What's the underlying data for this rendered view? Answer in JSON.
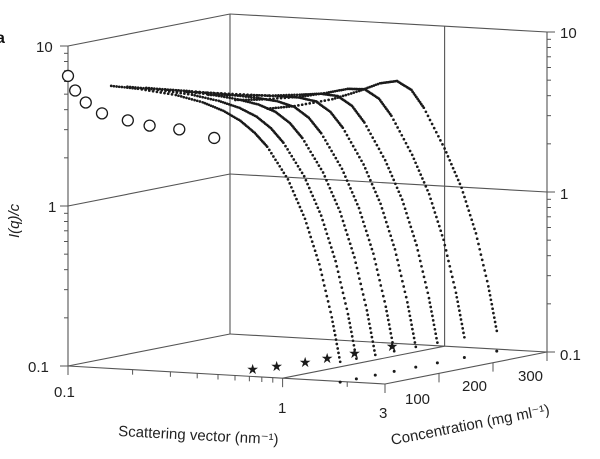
{
  "panel_label": "a",
  "chart_data": {
    "type": "scatter",
    "projection": "3d",
    "ylabel": "I(q)/c",
    "xlabel": "Scattering vector (nm⁻¹)",
    "zlabel": "Concentration (mg ml⁻¹)",
    "x_scale": "log",
    "y_scale": "log",
    "xlim": [
      0.1,
      3
    ],
    "ylim": [
      0.1,
      10
    ],
    "zlim": [
      0,
      300
    ],
    "x_ticks": [
      "0.1",
      "1",
      "3"
    ],
    "y_ticks_left": [
      "10",
      "1",
      "0.1"
    ],
    "y_ticks_right": [
      "10",
      "1",
      "0.1"
    ],
    "z_ticks": [
      "100",
      "200",
      "300"
    ],
    "grid": true,
    "q": [
      0.15,
      0.2,
      0.3,
      0.4,
      0.5,
      0.6,
      0.7,
      0.8,
      1.0,
      1.2,
      1.4,
      1.6,
      1.75
    ],
    "series": [
      {
        "concentration": 10,
        "marker": "dot",
        "values": [
          5.72,
          5.61,
          5.29,
          4.87,
          4.38,
          3.85,
          3.27,
          2.71,
          1.72,
          0.99,
          0.52,
          0.245,
          0.13
        ]
      },
      {
        "concentration": 40,
        "marker": "dot",
        "values": [
          5.4,
          5.32,
          5.07,
          4.74,
          4.36,
          3.9,
          3.34,
          2.74,
          1.72,
          0.99,
          0.52,
          0.245,
          0.13
        ]
      },
      {
        "concentration": 75,
        "marker": "dot",
        "values": [
          5.03,
          4.98,
          4.82,
          4.6,
          4.34,
          3.96,
          3.41,
          2.78,
          1.72,
          0.99,
          0.52,
          0.245,
          0.13
        ]
      },
      {
        "concentration": 110,
        "marker": "dot",
        "values": [
          4.66,
          4.64,
          4.56,
          4.45,
          4.31,
          4.03,
          3.49,
          2.82,
          1.72,
          0.99,
          0.52,
          0.245,
          0.13
        ]
      },
      {
        "concentration": 150,
        "marker": "dot",
        "values": [
          4.23,
          4.26,
          4.27,
          4.29,
          4.28,
          4.1,
          3.57,
          2.87,
          1.72,
          0.99,
          0.52,
          0.245,
          0.13
        ]
      },
      {
        "concentration": 190,
        "marker": "dot",
        "values": [
          3.81,
          3.87,
          3.98,
          4.12,
          4.25,
          4.17,
          3.66,
          2.91,
          1.72,
          0.99,
          0.52,
          0.245,
          0.13
        ]
      },
      {
        "concentration": 240,
        "marker": "dot",
        "values": [
          3.28,
          3.38,
          3.62,
          3.92,
          4.22,
          4.26,
          3.76,
          2.97,
          1.72,
          0.99,
          0.52,
          0.245,
          0.13
        ]
      },
      {
        "concentration": 300,
        "marker": "dot",
        "values": [
          2.64,
          2.8,
          3.19,
          3.67,
          4.17,
          4.37,
          3.89,
          3.04,
          1.72,
          0.99,
          0.52,
          0.245,
          0.13
        ]
      }
    ],
    "circles": {
      "marker": "open-circle",
      "concentration": 0,
      "points": [
        [
          0.1,
          6.5
        ],
        [
          0.108,
          5.3
        ],
        [
          0.121,
          4.5
        ],
        [
          0.144,
          3.9
        ],
        [
          0.19,
          3.6
        ],
        [
          0.24,
          3.4
        ],
        [
          0.33,
          3.3
        ],
        [
          0.48,
          3.0
        ]
      ]
    },
    "stars": {
      "marker": "star",
      "intensity": 0.1,
      "points": [
        [
          0.53,
          54
        ],
        [
          0.57,
          86
        ],
        [
          0.61,
          127
        ],
        [
          0.62,
          165
        ],
        [
          0.63,
          213
        ],
        [
          0.64,
          280
        ]
      ]
    },
    "colors": {
      "ink": "#1a1a1a",
      "grid": "#555555"
    }
  }
}
